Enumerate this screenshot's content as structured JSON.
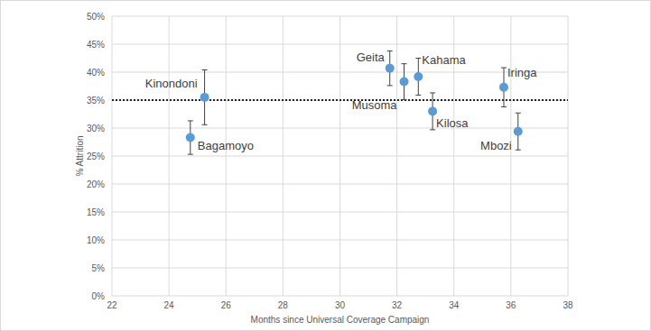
{
  "chart_data": {
    "type": "scatter",
    "x_label": "Months since Universal Coverage Campaign",
    "y_label": "% Attrition",
    "labels": [
      "Bagamoyo",
      "Kinondoni",
      "Geita",
      "Musoma",
      "Kahama",
      "Kilosa",
      "Iringa",
      "Mbozi"
    ],
    "x": [
      24.75,
      25.25,
      31.75,
      32.25,
      32.75,
      33.25,
      35.75,
      36.25
    ],
    "values": [
      28.3,
      35.5,
      40.7,
      38.3,
      39.2,
      33.0,
      37.3,
      29.4
    ],
    "errors": [
      3.0,
      4.9,
      3.1,
      3.2,
      3.3,
      3.3,
      3.5,
      3.3
    ],
    "reference_line": 35,
    "color": "#5b9bd5",
    "marker": "circle",
    "xlim": [
      22,
      38
    ],
    "xticks": [
      22,
      24,
      26,
      28,
      30,
      32,
      34,
      36,
      38
    ],
    "ylim": [
      0,
      50
    ],
    "yticks": [
      {
        "value": 0,
        "label": "0%"
      },
      {
        "value": 5,
        "label": "5%"
      },
      {
        "value": 10,
        "label": "10%"
      },
      {
        "value": 15,
        "label": "15%"
      },
      {
        "value": 20,
        "label": "20%"
      },
      {
        "value": 25,
        "label": "25%"
      },
      {
        "value": 30,
        "label": "30%"
      },
      {
        "value": 35,
        "label": "35%"
      },
      {
        "value": 40,
        "label": "40%"
      },
      {
        "value": 45,
        "label": "45%"
      },
      {
        "value": 50,
        "label": "50%"
      }
    ],
    "grid": true
  }
}
